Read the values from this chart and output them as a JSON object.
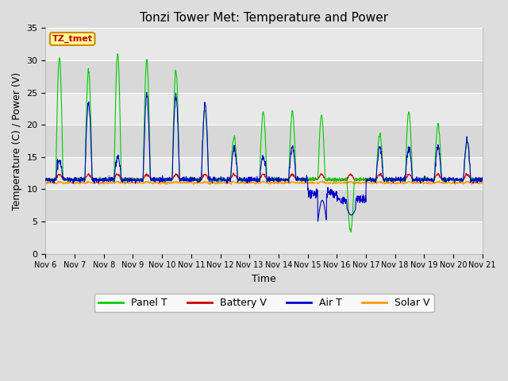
{
  "title": "Tonzi Tower Met: Temperature and Power",
  "xlabel": "Time",
  "ylabel": "Temperature (C) / Power (V)",
  "ylim": [
    0,
    35
  ],
  "yticks": [
    0,
    5,
    10,
    15,
    20,
    25,
    30,
    35
  ],
  "x_labels": [
    "Nov 6",
    "Nov 7",
    "Nov 8",
    "Nov 9",
    "Nov 10",
    "Nov 11",
    "Nov 12",
    "Nov 13",
    "Nov 14",
    "Nov 15",
    "Nov 16",
    "Nov 17",
    "Nov 18",
    "Nov 19",
    "Nov 20",
    "Nov 21"
  ],
  "x_positions": [
    0,
    1,
    2,
    3,
    4,
    5,
    6,
    7,
    8,
    9,
    10,
    11,
    12,
    13,
    14,
    15
  ],
  "panel_t_color": "#00cc00",
  "battery_v_color": "#cc0000",
  "air_t_color": "#0000cc",
  "solar_v_color": "#ff9900",
  "background_color": "#dddddd",
  "plot_bg_color": "#e8e8e8",
  "grid_color": "#ffffff",
  "legend_label_box": "TZ_tmet",
  "legend_box_color": "#ffff99",
  "legend_box_edge": "#cc8800",
  "legend_box_text": "#cc0000",
  "title_fontsize": 11,
  "axis_fontsize": 9,
  "tick_fontsize": 8,
  "legend_fontsize": 9,
  "band_colors": [
    "#e8e8e8",
    "#d8d8d8"
  ]
}
